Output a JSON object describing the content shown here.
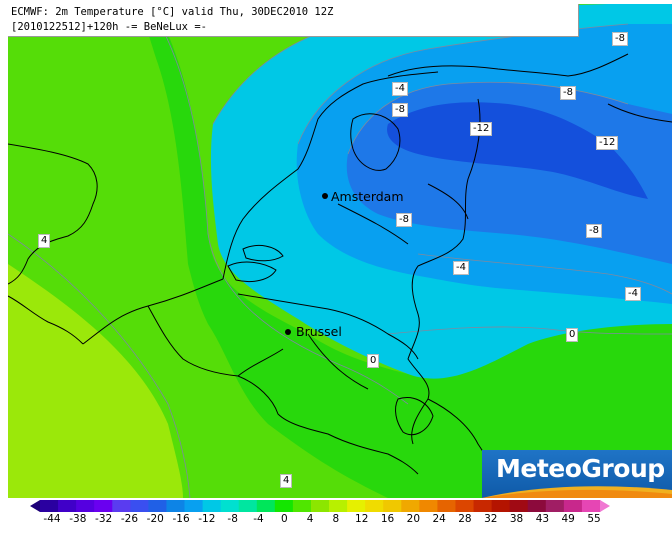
{
  "map": {
    "title_line_1": "ECMWF: 2m Temperature [°C] valid Thu, 30DEC2010 12Z",
    "title_line_2": "[2010122512]+120h -= BeNeLux =-",
    "cities": [
      {
        "name": "Amsterdam"
      },
      {
        "name": "Brussel"
      }
    ],
    "contour_labels": [
      "-8",
      "-4",
      "-8",
      "-8",
      "-12",
      "-12",
      "-8",
      "-8",
      "-4",
      "-4",
      "4",
      "0",
      "0",
      "4"
    ],
    "logo_text": "MeteoGroup",
    "colorbar": {
      "labels": [
        "-44",
        "-38",
        "-32",
        "-26",
        "-20",
        "-16",
        "-12",
        "-8",
        "-4",
        "0",
        "4",
        "8",
        "12",
        "16",
        "20",
        "24",
        "28",
        "32",
        "38",
        "43",
        "49",
        "55"
      ],
      "colors": [
        "#1c0078",
        "#2a00a0",
        "#4000c8",
        "#5500e0",
        "#6a00f0",
        "#5a3cf0",
        "#3a4ff0",
        "#2060e6",
        "#0d84e6",
        "#08a0f0",
        "#00c8e6",
        "#00e0d0",
        "#00e6a0",
        "#00e65a",
        "#14e600",
        "#50e600",
        "#8ce600",
        "#b8f000",
        "#e6f000",
        "#f0dc00",
        "#f0c800",
        "#f0a800",
        "#f08800",
        "#e66400",
        "#dc4600",
        "#c82800",
        "#b41400",
        "#a00a14",
        "#8c0a3c",
        "#a01e64",
        "#c8288c",
        "#e646b4",
        "#f078d2"
      ]
    },
    "field_colors": {
      "lime": "#9be80a",
      "light_green": "#55dd08",
      "green": "#28d80c",
      "cyan": "#00c8e6",
      "light_blue": "#08a0f0",
      "blue": "#1e78e8",
      "dark_blue": "#1450dc"
    }
  }
}
